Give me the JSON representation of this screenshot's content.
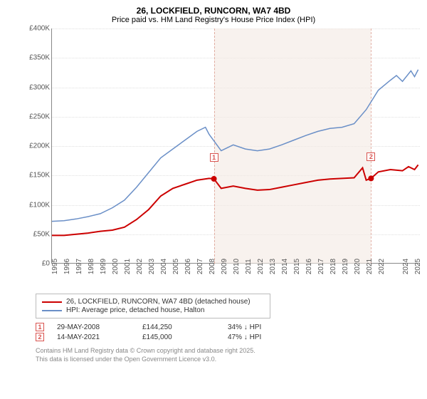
{
  "title": "26, LOCKFIELD, RUNCORN, WA7 4BD",
  "subtitle": "Price paid vs. HM Land Registry's House Price Index (HPI)",
  "chart": {
    "type": "line",
    "xlim": [
      1995,
      2025.5
    ],
    "ylim": [
      0,
      400000
    ],
    "ytick_step": 50000,
    "yticks": [
      "£0",
      "£50K",
      "£100K",
      "£150K",
      "£200K",
      "£250K",
      "£300K",
      "£350K",
      "£400K"
    ],
    "xticks": [
      1995,
      1996,
      1997,
      1998,
      1999,
      2000,
      2001,
      2002,
      2003,
      2004,
      2005,
      2006,
      2007,
      2008,
      2009,
      2010,
      2011,
      2012,
      2013,
      2014,
      2015,
      2016,
      2017,
      2018,
      2019,
      2020,
      2021,
      2022,
      2024,
      2025
    ],
    "background_color": "#ffffff",
    "grid_color": "#e0e0e0",
    "shade_color": "#f3e9e3",
    "shade_ranges": [
      [
        2008.4,
        2021.4
      ]
    ],
    "series": [
      {
        "name": "red",
        "label": "26, LOCKFIELD, RUNCORN, WA7 4BD (detached house)",
        "color": "#cc0000",
        "width": 2,
        "points": [
          [
            1995,
            48000
          ],
          [
            1996,
            48000
          ],
          [
            1997,
            50000
          ],
          [
            1998,
            52000
          ],
          [
            1999,
            55000
          ],
          [
            2000,
            57000
          ],
          [
            2001,
            62000
          ],
          [
            2002,
            75000
          ],
          [
            2003,
            92000
          ],
          [
            2004,
            115000
          ],
          [
            2005,
            128000
          ],
          [
            2006,
            135000
          ],
          [
            2007,
            142000
          ],
          [
            2008,
            145000
          ],
          [
            2008.4,
            144250
          ],
          [
            2009,
            128000
          ],
          [
            2010,
            132000
          ],
          [
            2011,
            128000
          ],
          [
            2012,
            125000
          ],
          [
            2013,
            126000
          ],
          [
            2014,
            130000
          ],
          [
            2015,
            134000
          ],
          [
            2016,
            138000
          ],
          [
            2017,
            142000
          ],
          [
            2018,
            144000
          ],
          [
            2019,
            145000
          ],
          [
            2020,
            146000
          ],
          [
            2020.7,
            163000
          ],
          [
            2021,
            142000
          ],
          [
            2021.4,
            145000
          ],
          [
            2022,
            156000
          ],
          [
            2023,
            160000
          ],
          [
            2024,
            158000
          ],
          [
            2024.5,
            165000
          ],
          [
            2025,
            160000
          ],
          [
            2025.3,
            168000
          ]
        ]
      },
      {
        "name": "blue",
        "label": "HPI: Average price, detached house, Halton",
        "color": "#6a8fc7",
        "width": 1.5,
        "points": [
          [
            1995,
            72000
          ],
          [
            1996,
            73000
          ],
          [
            1997,
            76000
          ],
          [
            1998,
            80000
          ],
          [
            1999,
            85000
          ],
          [
            2000,
            95000
          ],
          [
            2001,
            108000
          ],
          [
            2002,
            130000
          ],
          [
            2003,
            155000
          ],
          [
            2004,
            180000
          ],
          [
            2005,
            195000
          ],
          [
            2006,
            210000
          ],
          [
            2007,
            225000
          ],
          [
            2007.7,
            232000
          ],
          [
            2008,
            220000
          ],
          [
            2009,
            192000
          ],
          [
            2010,
            202000
          ],
          [
            2011,
            195000
          ],
          [
            2012,
            192000
          ],
          [
            2013,
            195000
          ],
          [
            2014,
            202000
          ],
          [
            2015,
            210000
          ],
          [
            2016,
            218000
          ],
          [
            2017,
            225000
          ],
          [
            2018,
            230000
          ],
          [
            2019,
            232000
          ],
          [
            2020,
            238000
          ],
          [
            2021,
            262000
          ],
          [
            2022,
            295000
          ],
          [
            2023,
            312000
          ],
          [
            2023.5,
            320000
          ],
          [
            2024,
            310000
          ],
          [
            2024.7,
            328000
          ],
          [
            2025,
            318000
          ],
          [
            2025.3,
            330000
          ]
        ]
      }
    ],
    "markers": [
      {
        "num": "1",
        "x": 2008.4,
        "y": 144250
      },
      {
        "num": "2",
        "x": 2021.4,
        "y": 145000
      }
    ]
  },
  "legend": {
    "items": [
      {
        "color": "#cc0000",
        "label": "26, LOCKFIELD, RUNCORN, WA7 4BD (detached house)"
      },
      {
        "color": "#6a8fc7",
        "label": "HPI: Average price, detached house, Halton"
      }
    ]
  },
  "table": {
    "rows": [
      {
        "num": "1",
        "date": "29-MAY-2008",
        "price": "£144,250",
        "pct": "34% ↓ HPI"
      },
      {
        "num": "2",
        "date": "14-MAY-2021",
        "price": "£145,000",
        "pct": "47% ↓ HPI"
      }
    ]
  },
  "footer": {
    "line1": "Contains HM Land Registry data © Crown copyright and database right 2025.",
    "line2": "This data is licensed under the Open Government Licence v3.0."
  }
}
